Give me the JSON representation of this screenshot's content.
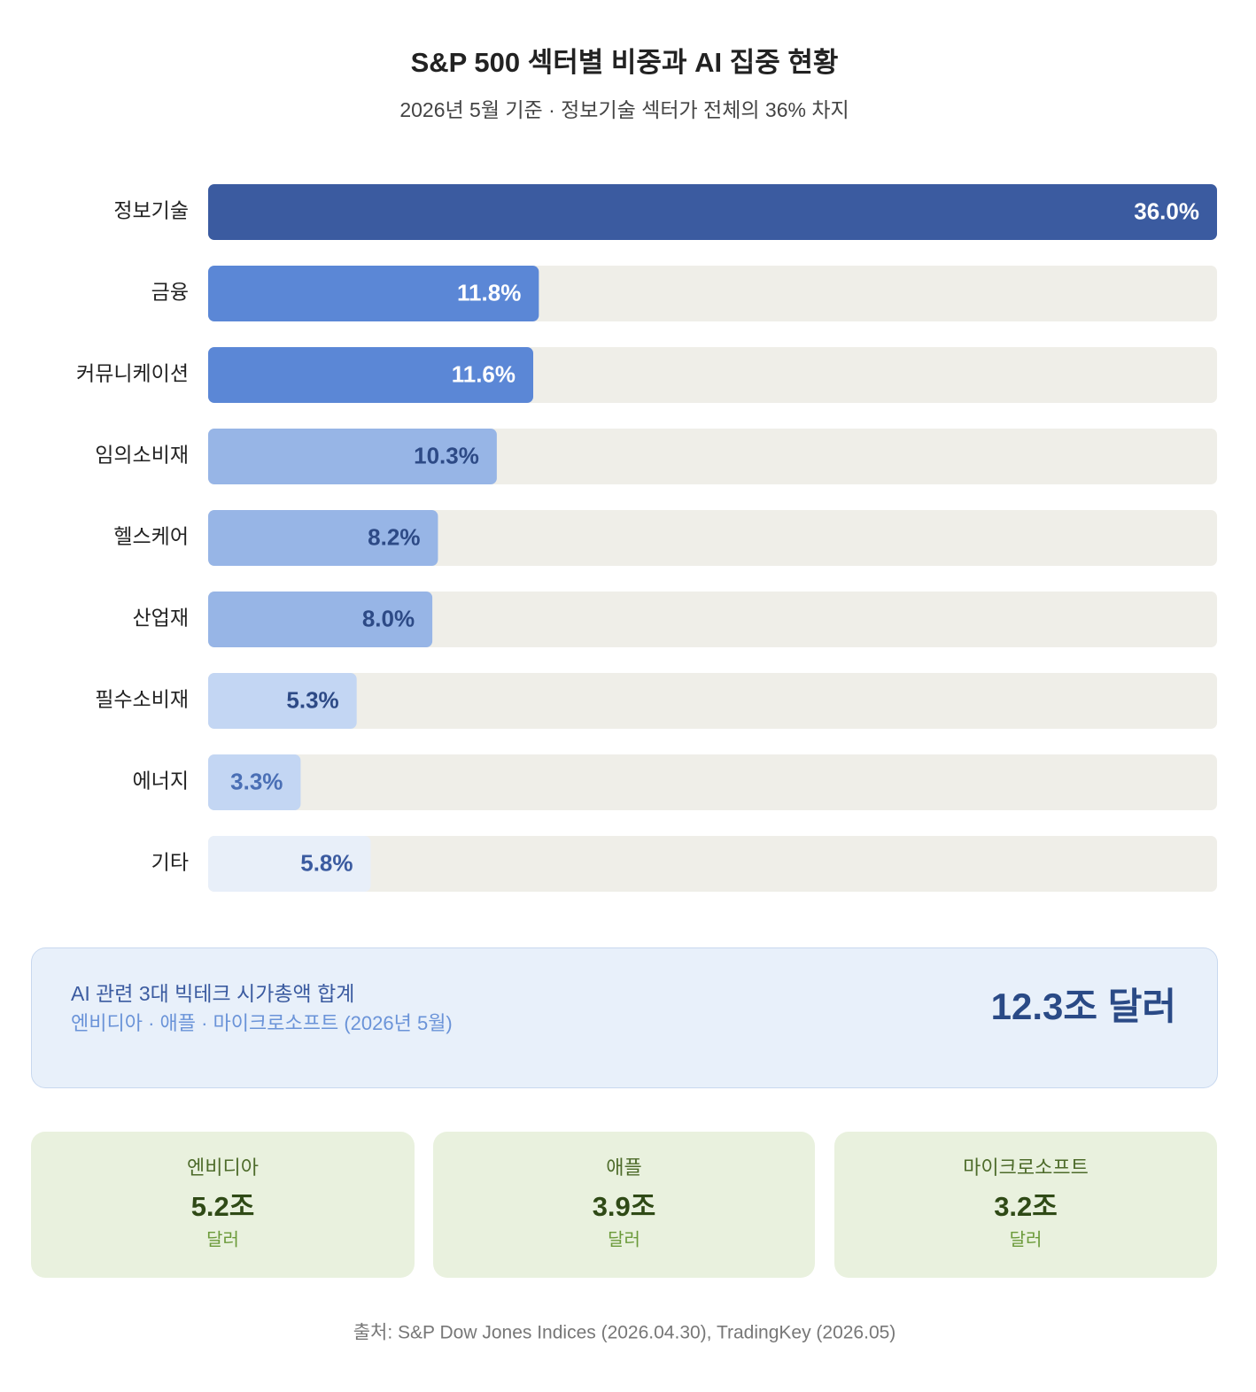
{
  "chart_data": {
    "type": "bar",
    "orientation": "horizontal",
    "title": "S&P 500 섹터별 비중과 AI 집중 현황",
    "subtitle": "2026년 5월 기준 · 정보기술 섹터가 전체의 36% 차지",
    "categories": [
      "정보기술",
      "금융",
      "커뮤니케이션",
      "임의소비재",
      "헬스케어",
      "산업재",
      "필수소비재",
      "에너지",
      "기타"
    ],
    "values": [
      36.0,
      11.8,
      11.6,
      10.3,
      8.2,
      8.0,
      5.3,
      3.3,
      5.8
    ],
    "value_labels": [
      "36.0%",
      "11.8%",
      "11.6%",
      "10.3%",
      "8.2%",
      "8.0%",
      "5.3%",
      "3.3%",
      "5.8%"
    ],
    "colors": [
      "#3b5ba0",
      "#5b87d6",
      "#5b87d6",
      "#97b5e6",
      "#97b5e6",
      "#97b5e6",
      "#c3d6f3",
      "#c3d6f3",
      "#e8eff9"
    ],
    "label_colors": [
      "#ffffff",
      "#ffffff",
      "#ffffff",
      "#2d4a86",
      "#2d4a86",
      "#2d4a86",
      "#2d4a86",
      "#4a6fb5",
      "#3b5ba0"
    ],
    "track_color": "#efeee8",
    "xlim": [
      0,
      36
    ]
  },
  "summary": {
    "title": "AI 관련 3대 빅테크 시가총액 합계",
    "subtitle": "엔비디아 · 애플 · 마이크로소프트 (2026년 5월)",
    "value": "12.3조 달러"
  },
  "companies": [
    {
      "name": "엔비디아",
      "value": "5.2조",
      "unit": "달러"
    },
    {
      "name": "애플",
      "value": "3.9조",
      "unit": "달러"
    },
    {
      "name": "마이크로소프트",
      "value": "3.2조",
      "unit": "달러"
    }
  ],
  "source": "출처: S&P Dow Jones Indices (2026.04.30), TradingKey (2026.05)"
}
